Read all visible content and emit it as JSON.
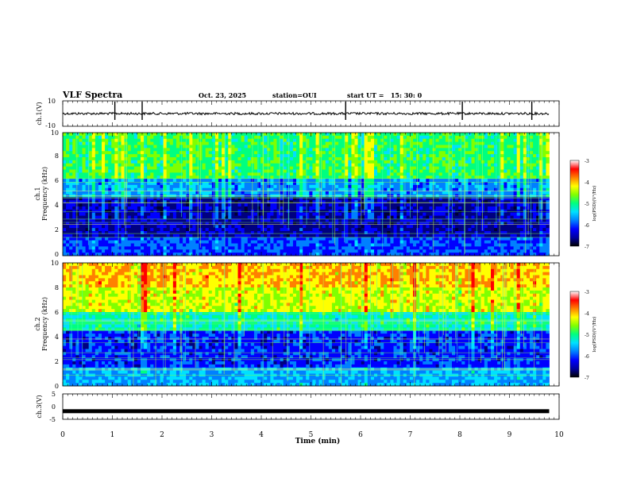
{
  "header": {
    "title": "VLF Spectra",
    "date": "Oct. 23, 2025",
    "station": "station=OUI",
    "start": "start UT =   15: 30: 0"
  },
  "colors": {
    "spectrum": [
      "#000033",
      "#000080",
      "#0000ff",
      "#0080ff",
      "#00e0ff",
      "#00ff80",
      "#80ff00",
      "#ffff00",
      "#ff8000",
      "#ff0000",
      "#ffffff"
    ]
  },
  "chart_data": [
    {
      "type": "line",
      "name": "ch1-waveform",
      "ylabel": "ch.1(V)",
      "ylim": [
        -10,
        10
      ],
      "yticks": [
        "10",
        "-10"
      ],
      "baseline": 0,
      "spikes_min": [
        1.05,
        1.6,
        5.7,
        8.05,
        9.45
      ]
    },
    {
      "type": "heatmap",
      "name": "ch1-spectrogram",
      "ylabel": "Frequency (kHz)",
      "channel": "ch.1",
      "ylim": [
        0,
        10
      ],
      "yticks": [
        "0",
        "2",
        "4",
        "6",
        "8",
        "10"
      ],
      "colorbar": {
        "label": "log(PSD)(V²/Hz)",
        "ticks": [
          "-3",
          "-4",
          "-5",
          "-6",
          "-7"
        ],
        "range": [
          -7,
          -3
        ]
      }
    },
    {
      "type": "heatmap",
      "name": "ch2-spectrogram",
      "ylabel": "Frequency (kHz)",
      "channel": "ch.2",
      "ylim": [
        0,
        10
      ],
      "yticks": [
        "0",
        "2",
        "4",
        "6",
        "8",
        "10"
      ],
      "colorbar": {
        "label": "log(PSD)(V²/Hz)",
        "ticks": [
          "-3",
          "-4",
          "-5",
          "-6",
          "-7"
        ],
        "range": [
          -7,
          -3
        ]
      }
    },
    {
      "type": "line",
      "name": "ch3-waveform",
      "ylabel": "ch.3(V)",
      "ylim": [
        -5,
        5
      ],
      "yticks": [
        "5",
        "0",
        "-5"
      ],
      "baseline": -1.8
    }
  ],
  "xaxis": {
    "label": "Time (min)",
    "xlim": [
      0,
      10
    ],
    "data_end": 9.8,
    "ticks": [
      "0",
      "1",
      "2",
      "3",
      "4",
      "5",
      "6",
      "7",
      "8",
      "9",
      "10"
    ]
  }
}
